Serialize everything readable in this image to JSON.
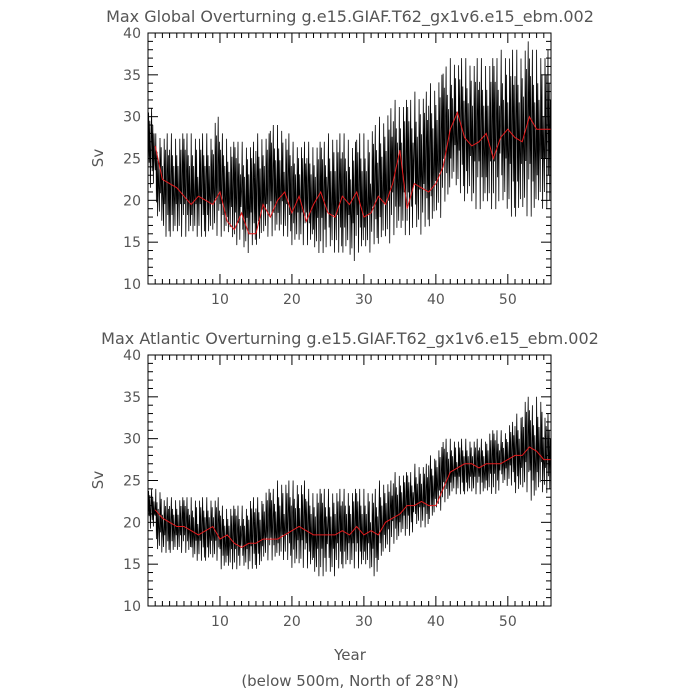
{
  "figure": {
    "caption": "(below 500m, North of 28°N)"
  },
  "chart_data": [
    {
      "type": "line",
      "title": "Max Global Overturning g.e15.GIAF.T62_gx1v6.e15_ebm.002",
      "xlabel": "",
      "ylabel": "Sv",
      "xlim": [
        0,
        56
      ],
      "ylim": [
        10,
        40
      ],
      "x_ticks": [
        10,
        20,
        30,
        40,
        50
      ],
      "y_ticks": [
        10,
        15,
        20,
        25,
        30,
        35,
        40
      ],
      "colors": {
        "monthly": "#000000",
        "annual": "#e41a1c"
      },
      "series": [
        {
          "name": "monthly",
          "samples_per_year": 12,
          "envelope": [
            [
              1,
              21,
              31
            ],
            [
              2,
              17,
              28
            ],
            [
              3,
              15,
              28
            ],
            [
              4,
              15,
              28
            ],
            [
              5,
              15,
              28
            ],
            [
              6,
              15,
              28
            ],
            [
              7,
              15,
              28
            ],
            [
              8,
              15,
              28
            ],
            [
              9,
              15,
              28
            ],
            [
              10,
              15,
              30
            ],
            [
              11,
              15,
              28
            ],
            [
              12,
              15,
              27
            ],
            [
              13,
              14,
              27
            ],
            [
              14,
              13,
              27
            ],
            [
              15,
              14,
              27
            ],
            [
              16,
              14,
              28
            ],
            [
              17,
              15,
              28
            ],
            [
              18,
              15,
              29
            ],
            [
              19,
              15,
              29
            ],
            [
              20,
              15,
              28
            ],
            [
              21,
              14,
              27
            ],
            [
              22,
              14,
              27
            ],
            [
              23,
              14,
              27
            ],
            [
              24,
              13,
              27
            ],
            [
              25,
              13,
              27
            ],
            [
              26,
              13,
              28
            ],
            [
              27,
              13,
              28
            ],
            [
              28,
              13,
              28
            ],
            [
              29,
              12,
              27
            ],
            [
              30,
              13,
              28
            ],
            [
              31,
              13,
              28
            ],
            [
              32,
              14,
              29
            ],
            [
              33,
              14,
              30
            ],
            [
              34,
              14,
              31
            ],
            [
              35,
              15,
              32
            ],
            [
              36,
              15,
              32
            ],
            [
              37,
              15,
              32
            ],
            [
              38,
              15,
              33
            ],
            [
              39,
              16,
              33
            ],
            [
              40,
              16,
              34
            ],
            [
              41,
              17,
              35
            ],
            [
              42,
              19,
              36
            ],
            [
              43,
              21,
              37
            ],
            [
              44,
              20,
              37
            ],
            [
              45,
              19,
              37
            ],
            [
              46,
              18,
              37
            ],
            [
              47,
              18,
              37
            ],
            [
              48,
              18,
              37
            ],
            [
              49,
              18,
              37
            ],
            [
              50,
              18,
              38
            ],
            [
              51,
              17,
              38
            ],
            [
              52,
              17,
              38
            ],
            [
              53,
              17,
              39
            ],
            [
              54,
              17,
              38
            ],
            [
              55,
              18,
              38
            ],
            [
              56,
              18,
              38
            ]
          ]
        },
        {
          "name": "annual",
          "x": [
            1,
            1.5,
            2,
            3,
            4,
            5,
            6,
            7,
            8,
            9,
            10,
            11,
            12,
            13,
            14,
            15,
            16,
            17,
            18,
            19,
            20,
            21,
            22,
            23,
            24,
            25,
            26,
            27,
            28,
            29,
            30,
            31,
            32,
            33,
            34,
            35,
            36,
            37,
            38,
            39,
            40,
            41,
            42,
            43,
            44,
            45,
            46,
            47,
            48,
            49,
            50,
            51,
            52,
            53,
            54,
            55,
            56
          ],
          "values": [
            26.5,
            24.5,
            22.5,
            22,
            21.5,
            20.5,
            19.5,
            20.5,
            20,
            19.5,
            21,
            17.5,
            16.5,
            18.5,
            16,
            16,
            19.5,
            18,
            20,
            21,
            18.5,
            20.5,
            17.5,
            19.5,
            21,
            18.5,
            18,
            20.5,
            19.5,
            21,
            18,
            18.5,
            20.5,
            19.5,
            22,
            26,
            19,
            22,
            21.5,
            21,
            22,
            24,
            28.5,
            30.5,
            27.5,
            26.5,
            27,
            28,
            25,
            27.5,
            28.5,
            27.5,
            27,
            30,
            28.5,
            28.5,
            28.5
          ]
        }
      ]
    },
    {
      "type": "line",
      "title": "Max Atlantic Overturning g.e15.GIAF.T62_gx1v6.e15_ebm.002",
      "xlabel": "Year",
      "ylabel": "Sv",
      "xlim": [
        0,
        56
      ],
      "ylim": [
        10,
        40
      ],
      "x_ticks": [
        10,
        20,
        30,
        40,
        50
      ],
      "y_ticks": [
        10,
        15,
        20,
        25,
        30,
        35,
        40
      ],
      "colors": {
        "monthly": "#000000",
        "annual": "#e41a1c"
      },
      "series": [
        {
          "name": "monthly",
          "samples_per_year": 12,
          "envelope": [
            [
              1,
              19,
              24
            ],
            [
              2,
              16,
              24
            ],
            [
              3,
              16,
              23
            ],
            [
              4,
              16,
              23
            ],
            [
              5,
              16,
              23
            ],
            [
              6,
              16,
              23
            ],
            [
              7,
              15,
              23
            ],
            [
              8,
              15,
              23
            ],
            [
              9,
              15,
              23
            ],
            [
              10,
              15,
              23
            ],
            [
              11,
              14,
              22
            ],
            [
              12,
              14,
              22
            ],
            [
              13,
              14,
              22
            ],
            [
              14,
              14,
              22
            ],
            [
              15,
              14,
              23
            ],
            [
              16,
              14,
              23
            ],
            [
              17,
              15,
              24
            ],
            [
              18,
              15,
              24
            ],
            [
              19,
              15,
              25
            ],
            [
              20,
              15,
              25
            ],
            [
              21,
              14,
              25
            ],
            [
              22,
              14,
              25
            ],
            [
              23,
              14,
              24
            ],
            [
              24,
              13,
              24
            ],
            [
              25,
              13,
              24
            ],
            [
              26,
              13,
              24
            ],
            [
              27,
              14,
              24
            ],
            [
              28,
              14,
              24
            ],
            [
              29,
              14,
              24
            ],
            [
              30,
              14,
              24
            ],
            [
              31,
              14,
              24
            ],
            [
              32,
              13,
              24
            ],
            [
              33,
              15,
              25
            ],
            [
              34,
              16,
              25
            ],
            [
              35,
              17,
              26
            ],
            [
              36,
              18,
              26
            ],
            [
              37,
              18,
              26
            ],
            [
              38,
              19,
              27
            ],
            [
              39,
              19,
              27
            ],
            [
              40,
              20,
              28
            ],
            [
              41,
              21,
              29
            ],
            [
              42,
              22,
              30
            ],
            [
              43,
              23,
              30
            ],
            [
              44,
              23,
              30
            ],
            [
              45,
              23,
              30
            ],
            [
              46,
              23,
              30
            ],
            [
              47,
              23,
              30
            ],
            [
              48,
              23,
              31
            ],
            [
              49,
              23,
              31
            ],
            [
              50,
              24,
              31
            ],
            [
              51,
              24,
              32
            ],
            [
              52,
              23,
              33
            ],
            [
              53,
              23,
              35
            ],
            [
              54,
              22,
              34
            ],
            [
              55,
              23,
              35
            ],
            [
              56,
              23,
              33
            ]
          ]
        },
        {
          "name": "annual",
          "x": [
            1,
            2,
            3,
            4,
            5,
            6,
            7,
            8,
            9,
            10,
            11,
            12,
            13,
            14,
            15,
            16,
            17,
            18,
            19,
            20,
            21,
            22,
            23,
            24,
            25,
            26,
            27,
            28,
            29,
            30,
            31,
            32,
            33,
            34,
            35,
            36,
            37,
            38,
            39,
            40,
            41,
            42,
            43,
            44,
            45,
            46,
            47,
            48,
            49,
            50,
            51,
            52,
            53,
            54,
            55,
            56
          ],
          "values": [
            21.5,
            20.5,
            20,
            19.5,
            19.5,
            19,
            18.5,
            19,
            19.5,
            18,
            18.5,
            17.5,
            17,
            17.5,
            17.5,
            18,
            18,
            18,
            18.5,
            19,
            19.5,
            19,
            18.5,
            18.5,
            18.5,
            18.5,
            19,
            18.5,
            19.5,
            18.5,
            19,
            18.5,
            20,
            20.5,
            21,
            22,
            22,
            22.5,
            22,
            22,
            24,
            26,
            26.5,
            27,
            27,
            26.5,
            27,
            27,
            27,
            27.5,
            28,
            28,
            29,
            28.5,
            27.5,
            27.5
          ]
        }
      ]
    }
  ]
}
